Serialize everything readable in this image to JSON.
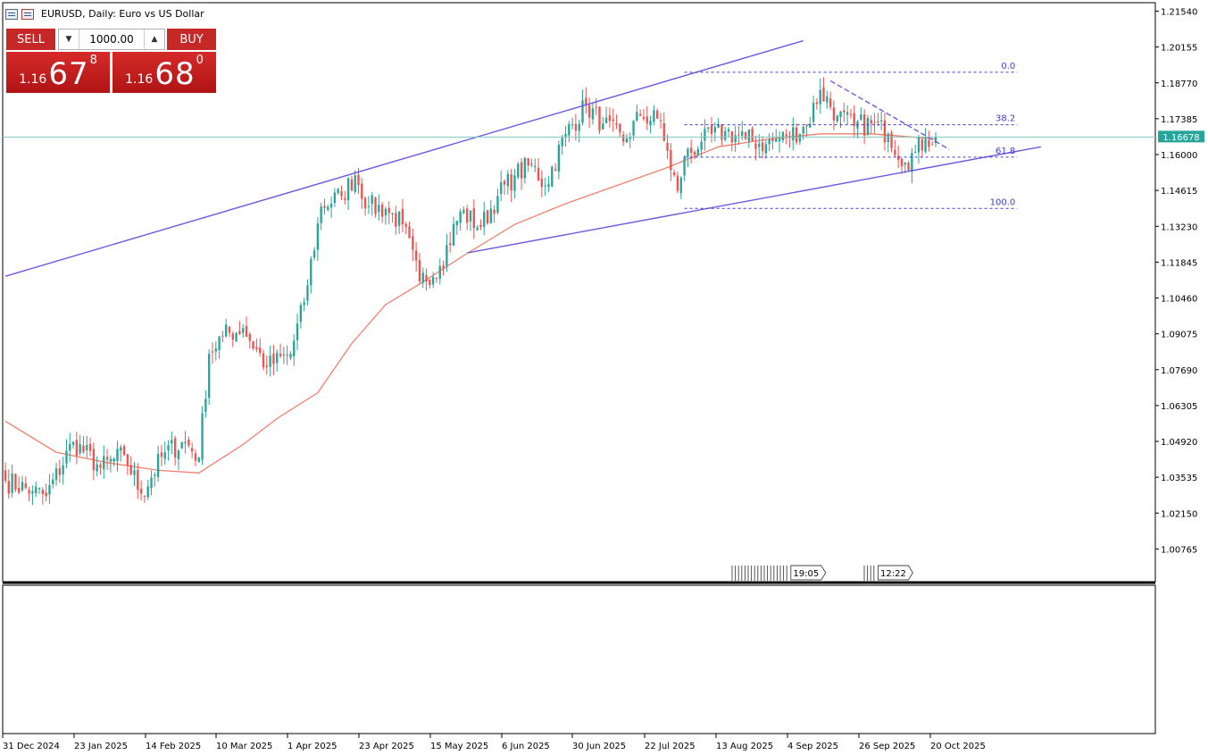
{
  "title": {
    "symbol_text": "EURUSD, Daily:  Euro vs US Dollar"
  },
  "trade": {
    "sell_label": "SELL",
    "buy_label": "BUY",
    "quantity": "1000.00",
    "sell_price": {
      "prefix": "1.16",
      "big": "67",
      "sup": "8"
    },
    "buy_price": {
      "prefix": "1.16",
      "big": "68",
      "sup": "0"
    }
  },
  "colors": {
    "bull": "#26a69a",
    "bear": "#ef5350",
    "ma": "#f0806e",
    "trendline": "#6a5ae0",
    "fib": "#3d3dd6",
    "price_line": "#7fc6c0",
    "price_tag_bg": "#26a69a"
  },
  "chart_data": {
    "type": "candlestick",
    "timeframe": "Daily",
    "y_ticks": [
      "1.21540",
      "1.20155",
      "1.18770",
      "1.17385",
      "1.16000",
      "1.14615",
      "1.13230",
      "1.11845",
      "1.10460",
      "1.09075",
      "1.07690",
      "1.06305",
      "1.04920",
      "1.03535",
      "1.02150",
      "1.00765"
    ],
    "ylim": [
      0.9992,
      1.2196
    ],
    "x_ticks": [
      "31 Dec 2024",
      "23 Jan 2025",
      "14 Feb 2025",
      "10 Mar 2025",
      "1 Apr 2025",
      "23 Apr 2025",
      "15 May 2025",
      "6 Jun 2025",
      "30 Jun 2025",
      "22 Jul 2025",
      "13 Aug 2025",
      "4 Sep 2025",
      "26 Sep 2025",
      "20 Oct 2025"
    ],
    "current_price": "1.16678",
    "candle_anchors": [
      {
        "i": 0,
        "close": 1.034
      },
      {
        "i": 8,
        "close": 1.03
      },
      {
        "i": 12,
        "close": 1.028
      },
      {
        "i": 20,
        "close": 1.049
      },
      {
        "i": 28,
        "close": 1.039
      },
      {
        "i": 35,
        "close": 1.044
      },
      {
        "i": 40,
        "close": 1.029
      },
      {
        "i": 47,
        "close": 1.045
      },
      {
        "i": 53,
        "close": 1.049
      },
      {
        "i": 57,
        "close": 1.043
      },
      {
        "i": 60,
        "close": 1.083
      },
      {
        "i": 64,
        "close": 1.09
      },
      {
        "i": 70,
        "close": 1.093
      },
      {
        "i": 77,
        "close": 1.078
      },
      {
        "i": 84,
        "close": 1.083
      },
      {
        "i": 88,
        "close": 1.103
      },
      {
        "i": 93,
        "close": 1.14
      },
      {
        "i": 99,
        "close": 1.144
      },
      {
        "i": 103,
        "close": 1.152
      },
      {
        "i": 107,
        "close": 1.14
      },
      {
        "i": 112,
        "close": 1.139
      },
      {
        "i": 117,
        "close": 1.133
      },
      {
        "i": 122,
        "close": 1.111
      },
      {
        "i": 128,
        "close": 1.117
      },
      {
        "i": 134,
        "close": 1.138
      },
      {
        "i": 140,
        "close": 1.132
      },
      {
        "i": 145,
        "close": 1.144
      },
      {
        "i": 150,
        "close": 1.152
      },
      {
        "i": 155,
        "close": 1.156
      },
      {
        "i": 159,
        "close": 1.148
      },
      {
        "i": 165,
        "close": 1.168
      },
      {
        "i": 171,
        "close": 1.179
      },
      {
        "i": 176,
        "close": 1.172
      },
      {
        "i": 182,
        "close": 1.165
      },
      {
        "i": 187,
        "close": 1.175
      },
      {
        "i": 193,
        "close": 1.173
      },
      {
        "i": 196,
        "close": 1.154
      },
      {
        "i": 198,
        "close": 1.146
      },
      {
        "i": 200,
        "close": 1.159
      },
      {
        "i": 205,
        "close": 1.165
      },
      {
        "i": 212,
        "close": 1.169
      },
      {
        "i": 218,
        "close": 1.166
      },
      {
        "i": 224,
        "close": 1.164
      },
      {
        "i": 230,
        "close": 1.167
      },
      {
        "i": 236,
        "close": 1.171
      },
      {
        "i": 240,
        "close": 1.185
      },
      {
        "i": 245,
        "close": 1.175
      },
      {
        "i": 250,
        "close": 1.171
      },
      {
        "i": 255,
        "close": 1.172
      },
      {
        "i": 260,
        "close": 1.168
      },
      {
        "i": 265,
        "close": 1.157
      },
      {
        "i": 268,
        "close": 1.161
      },
      {
        "i": 271,
        "close": 1.166
      },
      {
        "i": 274,
        "close": 1.1668
      }
    ],
    "moving_average": [
      {
        "i": 0,
        "v": 1.057
      },
      {
        "i": 15,
        "v": 1.045
      },
      {
        "i": 30,
        "v": 1.041
      },
      {
        "i": 45,
        "v": 1.038
      },
      {
        "i": 57,
        "v": 1.037
      },
      {
        "i": 70,
        "v": 1.048
      },
      {
        "i": 80,
        "v": 1.058
      },
      {
        "i": 92,
        "v": 1.068
      },
      {
        "i": 102,
        "v": 1.087
      },
      {
        "i": 112,
        "v": 1.102
      },
      {
        "i": 122,
        "v": 1.11
      },
      {
        "i": 135,
        "v": 1.121
      },
      {
        "i": 150,
        "v": 1.133
      },
      {
        "i": 165,
        "v": 1.141
      },
      {
        "i": 180,
        "v": 1.148
      },
      {
        "i": 195,
        "v": 1.155
      },
      {
        "i": 210,
        "v": 1.163
      },
      {
        "i": 225,
        "v": 1.166
      },
      {
        "i": 240,
        "v": 1.168
      },
      {
        "i": 255,
        "v": 1.168
      },
      {
        "i": 265,
        "v": 1.167
      },
      {
        "i": 274,
        "v": 1.166
      }
    ],
    "trendlines": [
      {
        "i1": 0,
        "p1": 1.113,
        "i2": 235,
        "p2": 1.204
      },
      {
        "i1": 136,
        "p1": 1.122,
        "i2": 305,
        "p2": 1.163
      },
      {
        "i1": 243,
        "p1": 1.1885,
        "i2": 278,
        "p2": 1.162
      }
    ],
    "fibonacci": {
      "i1": 200,
      "i2": 298,
      "levels": [
        {
          "label": "0.0",
          "price": 1.1918
        },
        {
          "label": "38.2",
          "price": 1.1715
        },
        {
          "label": "61.8",
          "price": 1.159
        },
        {
          "label": "100.0",
          "price": 1.1392
        }
      ]
    },
    "event_labels": [
      "19:05",
      "12:22"
    ],
    "candle_count": 275
  }
}
